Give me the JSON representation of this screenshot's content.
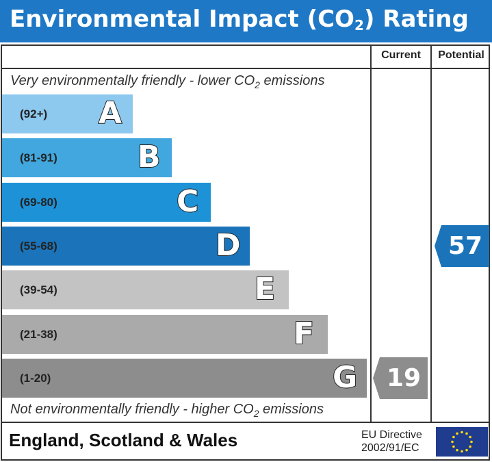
{
  "title_main": "Environmental Impact (CO",
  "title_sub": "2",
  "title_end": ") Rating",
  "columns": {
    "current": "Current",
    "potential": "Potential"
  },
  "top_caption": {
    "pre": "Very environmentally friendly - lower CO",
    "sub": "2",
    "post": " emissions"
  },
  "bottom_caption": {
    "pre": "Not environmentally friendly - higher CO",
    "sub": "2",
    "post": " emissions"
  },
  "footer": {
    "country": "England, Scotland & Wales",
    "eu_line1": "EU Directive",
    "eu_line2": "2002/91/EC"
  },
  "chart_data": {
    "type": "bar",
    "categories": [
      "A",
      "B",
      "C",
      "D",
      "E",
      "F",
      "G"
    ],
    "ranges": [
      "(92+)",
      "(81-91)",
      "(69-80)",
      "(55-68)",
      "(39-54)",
      "(21-38)",
      "(1-20)"
    ],
    "colors": [
      "#8dc8ee",
      "#41a7de",
      "#1e92d6",
      "#1b74ba",
      "#c3c3c3",
      "#aaaaaa",
      "#8d8d8d"
    ],
    "current": {
      "value": 19,
      "band": "G",
      "color": "#8d8d8d"
    },
    "potential": {
      "value": 57,
      "band": "D",
      "color": "#1b74ba"
    }
  }
}
